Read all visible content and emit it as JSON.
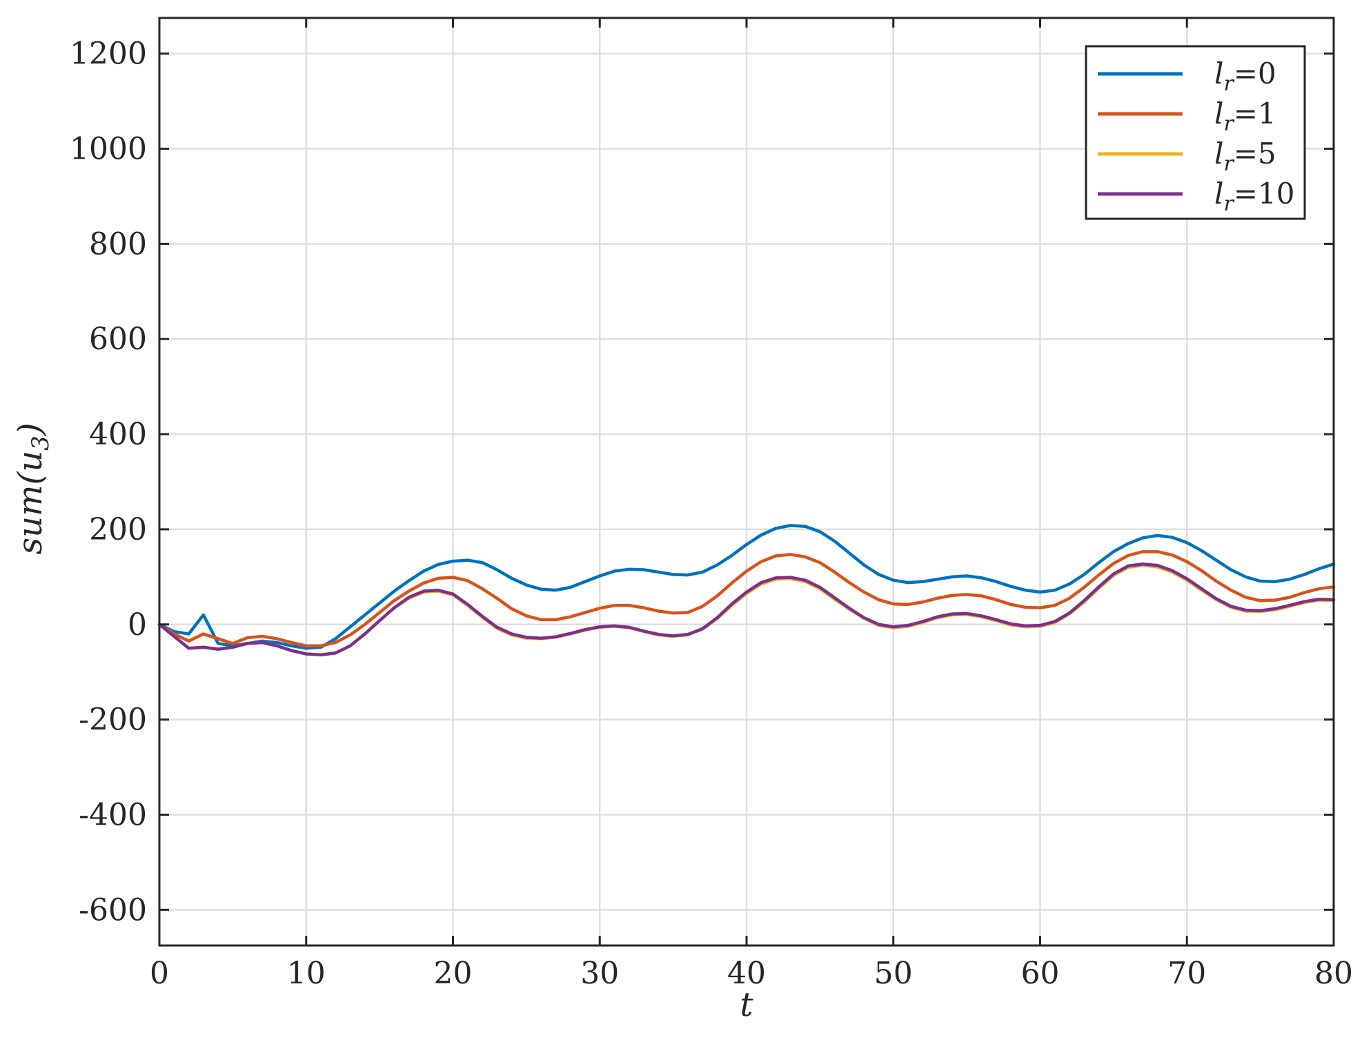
{
  "chart_data": {
    "type": "line",
    "title": "",
    "xlabel": "t",
    "ylabel_parts": {
      "pre": "sum(u",
      "sub": "3",
      "post": ")"
    },
    "xlim": [
      0,
      80
    ],
    "ylim": [
      -675,
      1275
    ],
    "xticks": [
      0,
      10,
      20,
      30,
      40,
      50,
      60,
      70,
      80
    ],
    "xtick_labels": [
      "0",
      "10",
      "20",
      "30",
      "40",
      "50",
      "60",
      "70",
      "80"
    ],
    "yticks": [
      -600,
      -400,
      -200,
      0,
      200,
      400,
      600,
      800,
      1000,
      1200
    ],
    "ytick_labels": [
      "-600",
      "-400",
      "-200",
      "0",
      "200",
      "400",
      "600",
      "800",
      "1000",
      "1200"
    ],
    "grid": true,
    "legend_position": "top-right",
    "x": [
      0,
      1,
      2,
      3,
      4,
      5,
      6,
      7,
      8,
      9,
      10,
      11,
      12,
      13,
      14,
      15,
      16,
      17,
      18,
      19,
      20,
      21,
      22,
      23,
      24,
      25,
      26,
      27,
      28,
      29,
      30,
      31,
      32,
      33,
      34,
      35,
      36,
      37,
      38,
      39,
      40,
      41,
      42,
      43,
      44,
      45,
      46,
      47,
      48,
      49,
      50,
      51,
      52,
      53,
      54,
      55,
      56,
      57,
      58,
      59,
      60,
      61,
      62,
      63,
      64,
      65,
      66,
      67,
      68,
      69,
      70,
      71,
      72,
      73,
      74,
      75,
      76,
      77,
      78,
      79,
      80
    ],
    "series": [
      {
        "legend_base": "l",
        "legend_sub": "r",
        "legend_value": "=0",
        "color": "#0072BD",
        "values": [
          0,
          -15,
          -20,
          20,
          -40,
          -45,
          -40,
          -35,
          -38,
          -45,
          -50,
          -48,
          -30,
          -5,
          20,
          45,
          70,
          92,
          112,
          126,
          133,
          135,
          130,
          115,
          97,
          83,
          74,
          72,
          78,
          90,
          102,
          112,
          116,
          115,
          110,
          105,
          104,
          110,
          125,
          145,
          168,
          188,
          202,
          208,
          206,
          195,
          175,
          150,
          125,
          105,
          93,
          88,
          90,
          95,
          100,
          102,
          98,
          90,
          80,
          72,
          68,
          72,
          85,
          105,
          130,
          153,
          170,
          182,
          187,
          183,
          172,
          155,
          135,
          115,
          100,
          91,
          90,
          95,
          105,
          117,
          127
        ]
      },
      {
        "legend_base": "l",
        "legend_sub": "r",
        "legend_value": "=1",
        "color": "#D95319",
        "values": [
          0,
          -20,
          -35,
          -20,
          -30,
          -40,
          -28,
          -25,
          -30,
          -38,
          -45,
          -45,
          -38,
          -22,
          0,
          25,
          50,
          70,
          87,
          97,
          99,
          92,
          75,
          55,
          33,
          18,
          10,
          10,
          16,
          25,
          34,
          40,
          40,
          35,
          28,
          24,
          25,
          38,
          60,
          87,
          112,
          132,
          144,
          147,
          142,
          130,
          110,
          88,
          68,
          52,
          43,
          42,
          47,
          55,
          61,
          63,
          60,
          52,
          42,
          36,
          35,
          40,
          55,
          78,
          104,
          128,
          145,
          153,
          153,
          146,
          132,
          113,
          91,
          72,
          57,
          50,
          51,
          57,
          67,
          75,
          79
        ]
      },
      {
        "legend_base": "l",
        "legend_sub": "r",
        "legend_value": "=5",
        "color": "#EDB120",
        "values": [
          0,
          -25,
          -50,
          -48,
          -52,
          -48,
          -40,
          -38,
          -45,
          -55,
          -62,
          -64,
          -60,
          -45,
          -20,
          8,
          35,
          55,
          68,
          70,
          62,
          40,
          15,
          -8,
          -22,
          -29,
          -30,
          -27,
          -20,
          -12,
          -6,
          -4,
          -7,
          -15,
          -22,
          -25,
          -22,
          -10,
          12,
          40,
          65,
          85,
          95,
          96,
          90,
          75,
          53,
          32,
          13,
          -2,
          -7,
          -4,
          4,
          14,
          20,
          21,
          16,
          8,
          -1,
          -5,
          -4,
          4,
          22,
          47,
          76,
          103,
          120,
          124,
          121,
          110,
          93,
          72,
          52,
          36,
          28,
          27,
          31,
          38,
          46,
          51,
          50
        ]
      },
      {
        "legend_base": "l",
        "legend_sub": "r",
        "legend_value": "=10",
        "color": "#7E2F8E",
        "values": [
          0,
          -25,
          -50,
          -48,
          -52,
          -48,
          -40,
          -38,
          -45,
          -55,
          -62,
          -64,
          -60,
          -45,
          -20,
          8,
          35,
          57,
          70,
          72,
          64,
          42,
          17,
          -6,
          -20,
          -27,
          -29,
          -26,
          -19,
          -11,
          -5,
          -3,
          -6,
          -14,
          -21,
          -24,
          -21,
          -9,
          14,
          43,
          68,
          88,
          98,
          99,
          93,
          78,
          56,
          34,
          14,
          0,
          -5,
          -2,
          6,
          16,
          22,
          23,
          18,
          10,
          1,
          -3,
          -2,
          6,
          24,
          50,
          79,
          106,
          123,
          127,
          124,
          113,
          96,
          75,
          54,
          38,
          30,
          29,
          33,
          40,
          48,
          53,
          52
        ]
      }
    ]
  }
}
